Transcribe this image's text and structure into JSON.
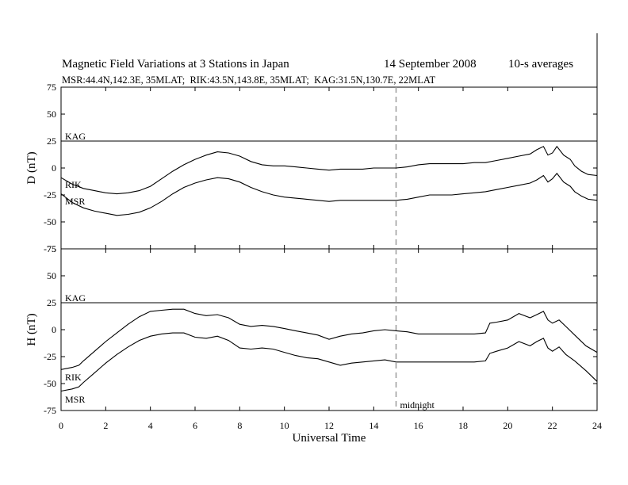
{
  "title": {
    "main": "Magnetic Field Variations at 3 Stations in Japan",
    "date": "14 September 2008",
    "averaging": "10-s averages",
    "stations_line": "MSR:44.4N,142.3E, 35MLAT;  RIK:43.5N,143.8E, 35MLAT;  KAG:31.5N,130.7E, 22MLAT"
  },
  "chart_data": [
    {
      "type": "line",
      "panel": "top",
      "ylabel": "D (nT)",
      "ylim": [
        -75,
        75
      ],
      "yticks": [
        75,
        50,
        25,
        0,
        -25,
        -50,
        -75
      ],
      "xlim": [
        0,
        24
      ],
      "xticks": [
        0,
        2,
        4,
        6,
        8,
        10,
        12,
        14,
        16,
        18,
        20,
        22,
        24
      ],
      "series": [
        {
          "name": "KAG",
          "x": [
            0,
            24
          ],
          "y": [
            25,
            25
          ]
        },
        {
          "name": "RIK",
          "x": [
            0,
            0.5,
            1,
            1.5,
            2,
            2.5,
            3,
            3.5,
            4,
            4.5,
            5,
            5.5,
            6,
            6.5,
            7,
            7.5,
            8,
            8.5,
            9,
            9.5,
            10,
            10.5,
            11,
            11.5,
            12,
            12.5,
            13,
            13.5,
            14,
            14.5,
            15,
            15.5,
            16,
            16.5,
            17,
            17.5,
            18,
            18.5,
            19,
            19.5,
            20,
            20.5,
            21,
            21.3,
            21.6,
            21.8,
            22,
            22.2,
            22.5,
            22.8,
            23,
            23.3,
            23.6,
            24
          ],
          "y": [
            -9,
            -15,
            -19,
            -21,
            -23,
            -24,
            -23,
            -21,
            -17,
            -10,
            -3,
            3,
            8,
            12,
            15,
            14,
            11,
            6,
            3,
            2,
            2,
            1,
            0,
            -1,
            -2,
            -1,
            -1,
            -1,
            0,
            0,
            0,
            1,
            3,
            4,
            4,
            4,
            4,
            5,
            5,
            7,
            9,
            11,
            13,
            17,
            20,
            12,
            14,
            20,
            12,
            8,
            2,
            -3,
            -6,
            -7
          ]
        },
        {
          "name": "MSR",
          "x": [
            0,
            0.5,
            1,
            1.5,
            2,
            2.5,
            3,
            3.5,
            4,
            4.5,
            5,
            5.5,
            6,
            6.5,
            7,
            7.5,
            8,
            8.5,
            9,
            9.5,
            10,
            10.5,
            11,
            11.5,
            12,
            12.5,
            13,
            13.5,
            14,
            14.5,
            15,
            15.5,
            16,
            16.5,
            17,
            17.5,
            18,
            18.5,
            19,
            19.5,
            20,
            20.5,
            21,
            21.3,
            21.6,
            21.8,
            22,
            22.2,
            22.5,
            22.8,
            23,
            23.3,
            23.6,
            24
          ],
          "y": [
            -24,
            -32,
            -37,
            -40,
            -42,
            -44,
            -43,
            -41,
            -37,
            -31,
            -24,
            -18,
            -14,
            -11,
            -9,
            -10,
            -13,
            -18,
            -22,
            -25,
            -27,
            -28,
            -29,
            -30,
            -31,
            -30,
            -30,
            -30,
            -30,
            -30,
            -30,
            -29,
            -27,
            -25,
            -25,
            -25,
            -24,
            -23,
            -22,
            -20,
            -18,
            -16,
            -14,
            -11,
            -7,
            -13,
            -10,
            -5,
            -13,
            -17,
            -22,
            -26,
            -29,
            -30
          ]
        }
      ],
      "annotations": [
        {
          "text": "midnight",
          "x": 15
        }
      ]
    },
    {
      "type": "line",
      "panel": "bottom",
      "ylabel": "H (nT)",
      "xlabel": "Universal Time",
      "ylim": [
        -75,
        75
      ],
      "yticks": [
        75,
        50,
        25,
        0,
        -25,
        -50,
        -75
      ],
      "xlim": [
        0,
        24
      ],
      "xticks": [
        0,
        2,
        4,
        6,
        8,
        10,
        12,
        14,
        16,
        18,
        20,
        22,
        24
      ],
      "series": [
        {
          "name": "KAG",
          "x": [
            0,
            24
          ],
          "y": [
            25,
            25
          ]
        },
        {
          "name": "RIK",
          "x": [
            0,
            0.5,
            0.8,
            1,
            1.5,
            2,
            2.5,
            3,
            3.5,
            4,
            4.5,
            5,
            5.5,
            6,
            6.5,
            7,
            7.5,
            8,
            8.5,
            9,
            9.5,
            10,
            10.5,
            11,
            11.5,
            12,
            12.5,
            13,
            13.5,
            14,
            14.5,
            15,
            15.5,
            16,
            16.5,
            17,
            17.5,
            18,
            18.5,
            19,
            19.2,
            19.5,
            20,
            20.5,
            21,
            21.3,
            21.6,
            21.8,
            22,
            22.3,
            22.6,
            23,
            23.5,
            24
          ],
          "y": [
            -37,
            -35,
            -33,
            -29,
            -20,
            -11,
            -3,
            5,
            12,
            17,
            18,
            19,
            19,
            15,
            13,
            14,
            11,
            5,
            3,
            4,
            3,
            1,
            -1,
            -3,
            -5,
            -9,
            -6,
            -4,
            -3,
            -1,
            0,
            -1,
            -2,
            -4,
            -4,
            -4,
            -4,
            -4,
            -4,
            -3,
            6,
            7,
            9,
            15,
            11,
            14,
            17,
            9,
            6,
            9,
            3,
            -5,
            -15,
            -21
          ]
        },
        {
          "name": "MSR",
          "x": [
            0,
            0.5,
            0.8,
            1,
            1.5,
            2,
            2.5,
            3,
            3.5,
            4,
            4.5,
            5,
            5.5,
            6,
            6.5,
            7,
            7.5,
            8,
            8.5,
            9,
            9.5,
            10,
            10.5,
            11,
            11.5,
            12,
            12.5,
            13,
            13.5,
            14,
            14.5,
            15,
            15.5,
            16,
            16.5,
            17,
            17.5,
            18,
            18.5,
            19,
            19.2,
            19.5,
            20,
            20.5,
            21,
            21.3,
            21.6,
            21.8,
            22,
            22.3,
            22.6,
            23,
            23.5,
            24
          ],
          "y": [
            -57,
            -55,
            -53,
            -49,
            -40,
            -31,
            -23,
            -16,
            -10,
            -6,
            -4,
            -3,
            -3,
            -7,
            -8,
            -6,
            -10,
            -17,
            -18,
            -17,
            -18,
            -21,
            -24,
            -26,
            -27,
            -30,
            -33,
            -31,
            -30,
            -29,
            -28,
            -30,
            -30,
            -30,
            -30,
            -30,
            -30,
            -30,
            -30,
            -29,
            -22,
            -20,
            -17,
            -11,
            -15,
            -11,
            -8,
            -17,
            -20,
            -16,
            -23,
            -29,
            -38,
            -48
          ]
        }
      ],
      "annotations": [
        {
          "text": "midnight",
          "x": 15
        }
      ]
    }
  ]
}
